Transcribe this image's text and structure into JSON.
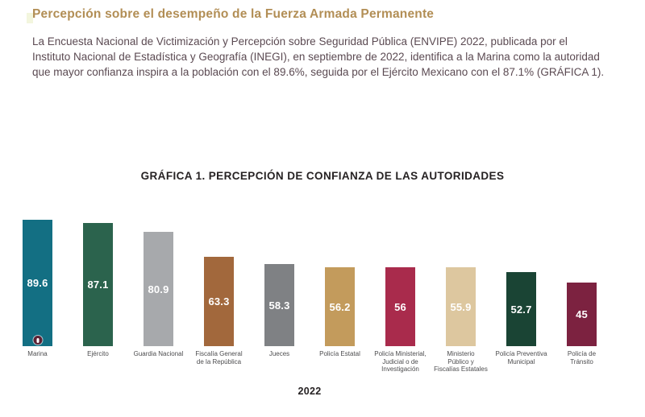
{
  "page": {
    "title": "Percepción sobre el desempeño de la Fuerza Armada Permanente",
    "paragraph": "La Encuesta Nacional de Victimización y Percepción sobre Seguridad Pública (ENVIPE) 2022, publicada por el Instituto Nacional de Estadística y Geografía (INEGI), en septiembre de 2022, identifica a la Marina como la autoridad que mayor confianza inspira a la población con el 89.6%, seguida por el Ejército Mexicano con el 87.1% (GRÁFICA 1)."
  },
  "theme": {
    "title_color": "#b28e55",
    "body_text_color": "#5b4a52",
    "chart_title_color": "#262223",
    "axis_label_color": "#4d4d4f",
    "value_label_color": "#ffffff",
    "marker_color": "#5c2033"
  },
  "chart_data": {
    "type": "bar",
    "title": "GRÁFICA 1. PERCEPCIÓN DE CONFIANZA DE LAS AUTORIDADES",
    "xlabel": "2022",
    "ylabel": "",
    "ylim": [
      0,
      100
    ],
    "grid": false,
    "legend": false,
    "value_labels_position": "center-inside",
    "categories": [
      "Marina",
      "Ejército",
      "Guardia Nacional",
      "Fiscalía General\nde la República",
      "Jueces",
      "Policía Estatal",
      "Policía Ministerial,\nJudicial o de\nInvestigación",
      "Ministerio\nPúblico y\nFiscalías Estatales",
      "Policía Preventiva\nMunicipal",
      "Policía de\nTránsito"
    ],
    "values": [
      89.6,
      87.1,
      80.9,
      63.3,
      58.3,
      56.2,
      56,
      55.9,
      52.7,
      45
    ],
    "bar_colors": [
      "#136f83",
      "#2b634d",
      "#a7a9ac",
      "#a2683c",
      "#7f8184",
      "#c39b5c",
      "#a92b4c",
      "#ddc79f",
      "#1a4434",
      "#7c2240"
    ]
  }
}
